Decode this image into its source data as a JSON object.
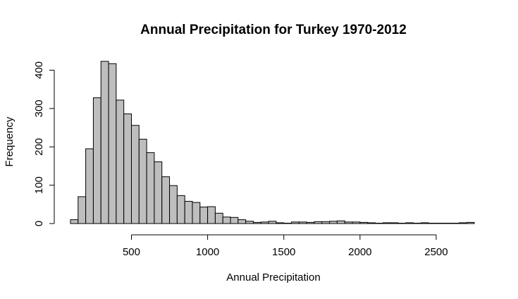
{
  "chart_data": {
    "type": "bar",
    "subtype": "histogram",
    "title": "Annual Precipitation for Turkey 1970-2012",
    "xlabel": "Annual Precipitation",
    "ylabel": "Frequency",
    "bin_width": 50,
    "bins_start": 100,
    "bins_end": 2750,
    "values": [
      10,
      70,
      195,
      328,
      423,
      417,
      322,
      286,
      256,
      220,
      185,
      161,
      122,
      99,
      73,
      58,
      55,
      43,
      44,
      27,
      17,
      16,
      10,
      6,
      3,
      4,
      6,
      2,
      1,
      4,
      4,
      3,
      5,
      5,
      6,
      7,
      4,
      4,
      3,
      2,
      1,
      2,
      2,
      1,
      2,
      1,
      2,
      1,
      1,
      1,
      1,
      2,
      3
    ],
    "xticks": [
      500,
      1000,
      1500,
      2000,
      2500
    ],
    "xtick_labels": [
      "500",
      "1000",
      "1500",
      "2000",
      "2500"
    ],
    "yticks": [
      0,
      100,
      200,
      300,
      400
    ],
    "ytick_labels": [
      "0",
      "100",
      "200",
      "300",
      "400"
    ],
    "xlim": [
      100,
      2750
    ],
    "ylim": [
      0,
      423
    ],
    "grid": false,
    "legend": "none",
    "bar_color": "#bebebe",
    "edge_color": "#000000"
  }
}
